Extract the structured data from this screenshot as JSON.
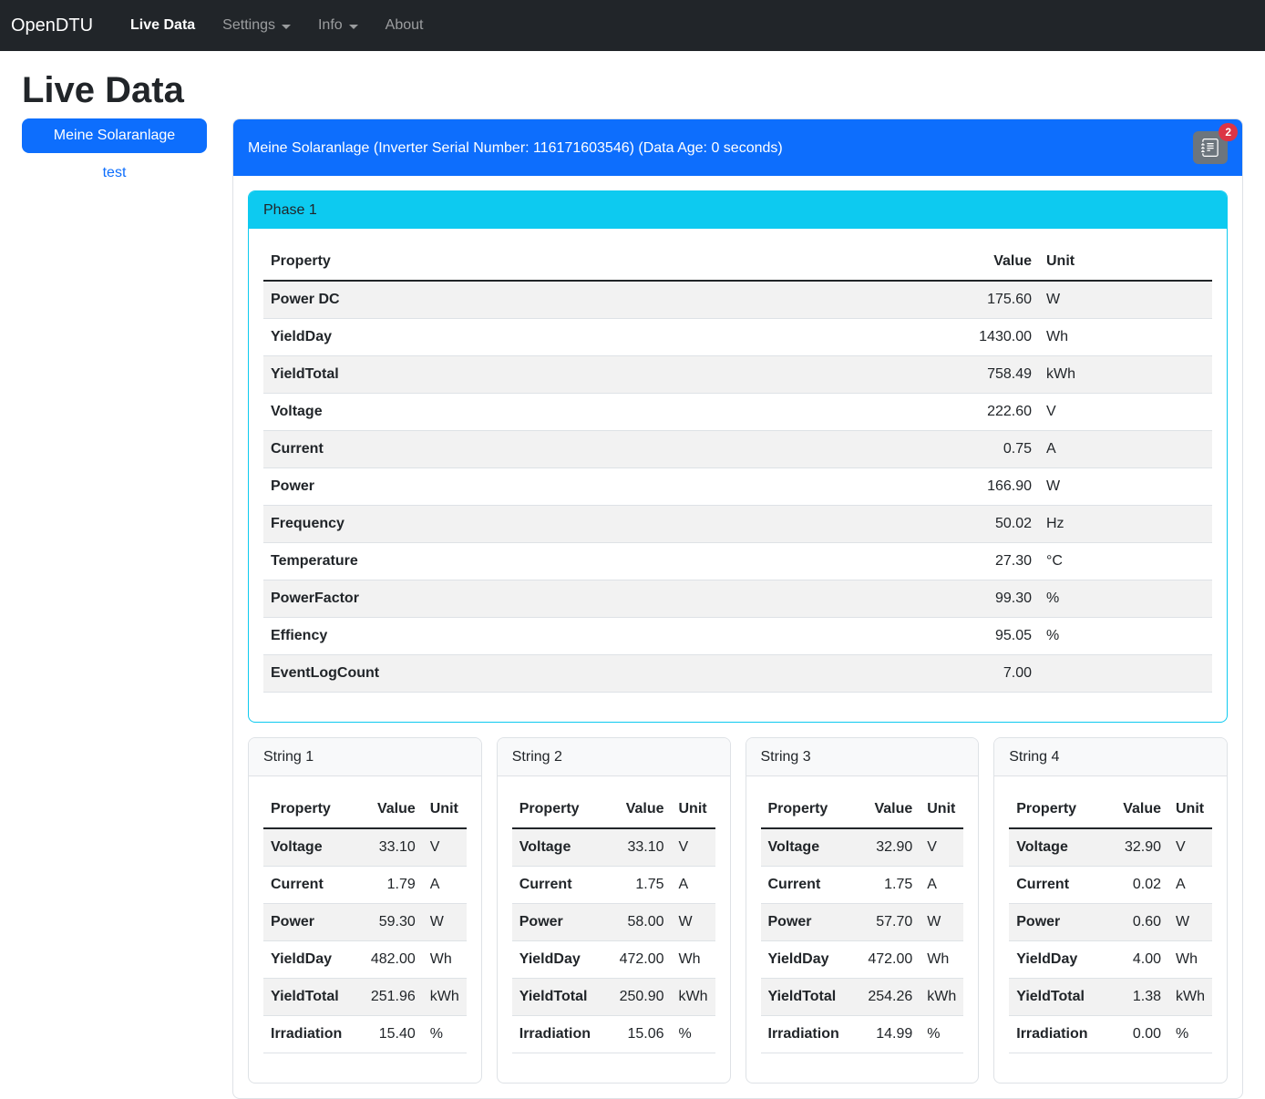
{
  "navbar": {
    "brand": "OpenDTU",
    "items": [
      {
        "label": "Live Data",
        "active": true,
        "dropdown": false
      },
      {
        "label": "Settings",
        "active": false,
        "dropdown": true
      },
      {
        "label": "Info",
        "active": false,
        "dropdown": true
      },
      {
        "label": "About",
        "active": false,
        "dropdown": false
      }
    ]
  },
  "page": {
    "title": "Live Data"
  },
  "sidebar": {
    "items": [
      {
        "label": "Meine Solaranlage",
        "active": true
      },
      {
        "label": "test",
        "active": false
      }
    ]
  },
  "inverter": {
    "header": "Meine Solaranlage (Inverter Serial Number: 116171603546) (Data Age: 0 seconds)",
    "eventlog_badge": "2",
    "eventlog_icon": "journal-text-icon",
    "string_columns": [
      "Property",
      "Value",
      "Unit"
    ],
    "phase": {
      "title": "Phase 1",
      "columns": [
        "Property",
        "Value",
        "Unit"
      ],
      "rows": [
        [
          "Power DC",
          "175.60",
          "W"
        ],
        [
          "YieldDay",
          "1430.00",
          "Wh"
        ],
        [
          "YieldTotal",
          "758.49",
          "kWh"
        ],
        [
          "Voltage",
          "222.60",
          "V"
        ],
        [
          "Current",
          "0.75",
          "A"
        ],
        [
          "Power",
          "166.90",
          "W"
        ],
        [
          "Frequency",
          "50.02",
          "Hz"
        ],
        [
          "Temperature",
          "27.30",
          "°C"
        ],
        [
          "PowerFactor",
          "99.30",
          "%"
        ],
        [
          "Effiency",
          "95.05",
          "%"
        ],
        [
          "EventLogCount",
          "7.00",
          ""
        ]
      ]
    },
    "strings": [
      {
        "title": "String 1",
        "rows": [
          [
            "Voltage",
            "33.10",
            "V"
          ],
          [
            "Current",
            "1.79",
            "A"
          ],
          [
            "Power",
            "59.30",
            "W"
          ],
          [
            "YieldDay",
            "482.00",
            "Wh"
          ],
          [
            "YieldTotal",
            "251.96",
            "kWh"
          ],
          [
            "Irradiation",
            "15.40",
            "%"
          ]
        ]
      },
      {
        "title": "String 2",
        "rows": [
          [
            "Voltage",
            "33.10",
            "V"
          ],
          [
            "Current",
            "1.75",
            "A"
          ],
          [
            "Power",
            "58.00",
            "W"
          ],
          [
            "YieldDay",
            "472.00",
            "Wh"
          ],
          [
            "YieldTotal",
            "250.90",
            "kWh"
          ],
          [
            "Irradiation",
            "15.06",
            "%"
          ]
        ]
      },
      {
        "title": "String 3",
        "rows": [
          [
            "Voltage",
            "32.90",
            "V"
          ],
          [
            "Current",
            "1.75",
            "A"
          ],
          [
            "Power",
            "57.70",
            "W"
          ],
          [
            "YieldDay",
            "472.00",
            "Wh"
          ],
          [
            "YieldTotal",
            "254.26",
            "kWh"
          ],
          [
            "Irradiation",
            "14.99",
            "%"
          ]
        ]
      },
      {
        "title": "String 4",
        "rows": [
          [
            "Voltage",
            "32.90",
            "V"
          ],
          [
            "Current",
            "0.02",
            "A"
          ],
          [
            "Power",
            "0.60",
            "W"
          ],
          [
            "YieldDay",
            "4.00",
            "Wh"
          ],
          [
            "YieldTotal",
            "1.38",
            "kWh"
          ],
          [
            "Irradiation",
            "0.00",
            "%"
          ]
        ]
      }
    ]
  },
  "colors": {
    "primary": "#0d6efd",
    "info": "#0dcaf0",
    "secondary": "#6c757d",
    "danger": "#dc3545",
    "navbar_bg": "#212529",
    "border": "#dee2e6",
    "stripe": "#f2f2f2",
    "text": "#212529"
  }
}
